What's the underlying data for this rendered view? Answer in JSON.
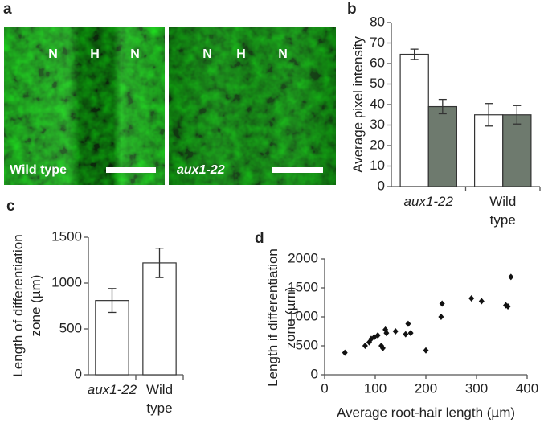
{
  "figure_a": {
    "label": "a",
    "left": {
      "marks": [
        "N",
        "H",
        "N"
      ],
      "caption": "Wild type"
    },
    "right": {
      "marks": [
        "N",
        "H",
        "N"
      ],
      "caption": "aux1-22"
    }
  },
  "chart_data": [
    {
      "type": "grouped-bar",
      "panel_label": "b",
      "ylabel": "Average pixel intensity",
      "categories": [
        "aux1-22",
        "Wild type"
      ],
      "series": [
        {
          "color": "#ffffff",
          "values": [
            64.5,
            35
          ],
          "errors": [
            2.5,
            5.5
          ]
        },
        {
          "color": "#6e7a6e",
          "values": [
            39,
            35
          ],
          "errors": [
            3.5,
            4.5
          ]
        }
      ],
      "ylim": [
        0,
        80
      ],
      "yticks": [
        0,
        10,
        20,
        30,
        40,
        50,
        60,
        70,
        80
      ]
    },
    {
      "type": "bar",
      "panel_label": "c",
      "ylabel": "Length of differentiation zone (µm)",
      "categories": [
        "aux1-22",
        "Wild type"
      ],
      "values": [
        810,
        1220
      ],
      "errors": [
        130,
        160
      ],
      "color": "#ffffff",
      "ylim": [
        0,
        1500
      ],
      "yticks": [
        0,
        500,
        1000,
        1500
      ]
    },
    {
      "type": "scatter",
      "panel_label": "d",
      "xlabel": "Average root-hair length (µm)",
      "ylabel": "Length if differentiation zone (µm)",
      "x": [
        40,
        80,
        88,
        92,
        98,
        105,
        112,
        115,
        120,
        122,
        140,
        160,
        165,
        170,
        200,
        230,
        232,
        290,
        310,
        358,
        362,
        368
      ],
      "y": [
        380,
        500,
        560,
        620,
        650,
        680,
        500,
        460,
        780,
        720,
        750,
        700,
        880,
        720,
        420,
        1000,
        1230,
        1320,
        1270,
        1200,
        1180,
        1690
      ],
      "color": "#111111",
      "xlim": [
        0,
        400
      ],
      "xticks": [
        0,
        100,
        200,
        300,
        400
      ],
      "ylim": [
        0,
        2000
      ],
      "yticks": [
        0,
        500,
        1000,
        1500,
        2000
      ]
    }
  ]
}
